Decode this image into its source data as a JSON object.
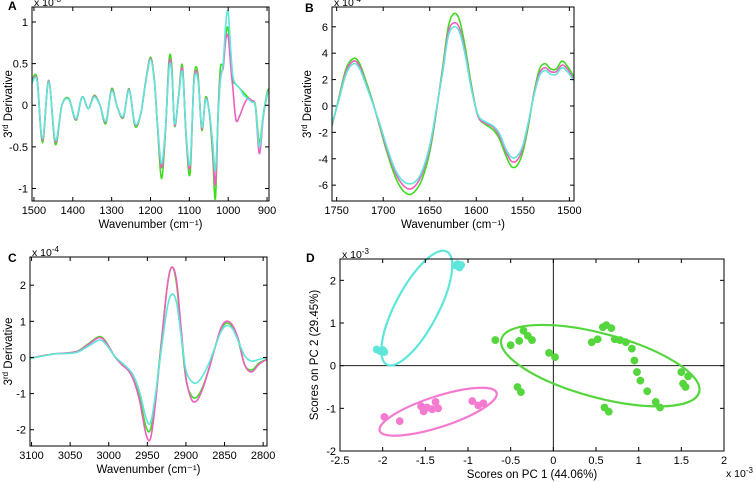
{
  "colors": {
    "green": "#3ddc1f",
    "pink": "#ee5fc0",
    "cyan": "#5ee6da",
    "light_pink": "#f47bd0",
    "mid_green": "#55d63c"
  },
  "chart_data": [
    {
      "id": "A",
      "type": "line",
      "letter": "A",
      "ylabel_prefix": "3",
      "ylabel_sup": "rd",
      "ylabel_suffix": " Derivative",
      "xlabel": "Wavenumber (cm⁻¹)",
      "exponent_label": "x 10",
      "exponent_power": "-3",
      "xlim": [
        1505,
        895
      ],
      "ylim": [
        -1.15,
        1.18
      ],
      "xticks": [
        1500,
        1400,
        1300,
        1200,
        1100,
        1000,
        900
      ],
      "yticks": [
        -1,
        -0.5,
        0,
        0.5,
        1
      ],
      "ytick_labels": [
        "-1",
        "-0.5",
        "0",
        "0.5",
        "1"
      ],
      "x": [
        1505,
        1492,
        1478,
        1462,
        1445,
        1428,
        1410,
        1392,
        1376,
        1360,
        1345,
        1330,
        1315,
        1300,
        1285,
        1270,
        1255,
        1240,
        1225,
        1212,
        1200,
        1190,
        1182,
        1172,
        1162,
        1152,
        1145,
        1138,
        1128,
        1118,
        1108,
        1098,
        1088,
        1078,
        1068,
        1058,
        1048,
        1040,
        1033,
        1026,
        1020,
        1013,
        1006,
        1000,
        994,
        988,
        980,
        970,
        960,
        950,
        940,
        930,
        920,
        910,
        900,
        895
      ],
      "series": [
        {
          "name": "green",
          "color": "#3ddc1f",
          "values": [
            0.3,
            0.32,
            -0.45,
            0.3,
            -0.47,
            0.0,
            0.08,
            -0.18,
            0.1,
            -0.04,
            0.12,
            0.0,
            -0.22,
            0.2,
            -0.03,
            -0.15,
            0.2,
            -0.25,
            -0.1,
            0.3,
            0.58,
            0.3,
            -0.25,
            -0.88,
            -0.35,
            0.55,
            0.45,
            -0.25,
            0.1,
            0.48,
            -0.4,
            -0.82,
            0.32,
            0.38,
            -0.3,
            0.1,
            -0.12,
            -0.6,
            -1.12,
            -0.1,
            0.45,
            0.5,
            0.85,
            0.92,
            0.55,
            0.3,
            0.25,
            0.2,
            0.15,
            0.1,
            0.05,
            0.0,
            -0.45,
            -0.12,
            0.15,
            0.2
          ]
        },
        {
          "name": "pink",
          "color": "#ee5fc0",
          "values": [
            0.28,
            0.3,
            -0.42,
            0.29,
            -0.44,
            0.0,
            0.07,
            -0.17,
            0.1,
            -0.04,
            0.11,
            0.0,
            -0.2,
            0.18,
            -0.03,
            -0.14,
            0.19,
            -0.23,
            -0.1,
            0.29,
            0.56,
            0.29,
            -0.24,
            -0.75,
            -0.33,
            0.5,
            0.4,
            -0.24,
            0.09,
            0.44,
            -0.38,
            -0.74,
            0.29,
            0.34,
            -0.28,
            0.08,
            -0.11,
            -0.52,
            -0.95,
            -0.12,
            0.35,
            0.45,
            0.8,
            0.82,
            0.5,
            0.2,
            -0.18,
            -0.12,
            0.0,
            0.08,
            0.06,
            -0.02,
            -0.58,
            -0.15,
            0.12,
            0.18
          ]
        },
        {
          "name": "cyan",
          "color": "#5ee6da",
          "values": [
            0.27,
            0.29,
            -0.4,
            0.28,
            -0.42,
            0.0,
            0.07,
            -0.16,
            0.1,
            -0.04,
            0.1,
            0.0,
            -0.19,
            0.17,
            -0.03,
            -0.13,
            0.18,
            -0.22,
            -0.1,
            0.28,
            0.55,
            0.28,
            -0.22,
            -0.7,
            -0.3,
            0.45,
            0.38,
            -0.22,
            0.08,
            0.4,
            -0.35,
            -0.7,
            0.27,
            0.31,
            -0.26,
            0.07,
            -0.1,
            -0.45,
            -0.78,
            -0.15,
            0.3,
            0.5,
            1.0,
            1.12,
            0.7,
            0.35,
            0.25,
            0.2,
            0.12,
            0.08,
            0.04,
            -0.02,
            -0.5,
            -0.13,
            0.12,
            0.17
          ]
        }
      ]
    },
    {
      "id": "B",
      "type": "line",
      "letter": "B",
      "ylabel_prefix": "3",
      "ylabel_sup": "rd",
      "ylabel_suffix": " Derivative",
      "xlabel": "Wavenumber (cm⁻¹)",
      "exponent_label": "x 10",
      "exponent_power": "-4",
      "xlim": [
        1755,
        1495
      ],
      "ylim": [
        -7.2,
        7.5
      ],
      "xticks": [
        1750,
        1700,
        1650,
        1600,
        1550,
        1500
      ],
      "yticks": [
        -6,
        -4,
        -2,
        0,
        2,
        4,
        6
      ],
      "ytick_labels": [
        "-6",
        "-4",
        "-2",
        "0",
        "2",
        "4",
        "6"
      ],
      "x": [
        1755,
        1748,
        1740,
        1732,
        1726,
        1720,
        1712,
        1704,
        1696,
        1688,
        1680,
        1672,
        1665,
        1658,
        1650,
        1643,
        1636,
        1630,
        1624,
        1618,
        1612,
        1605,
        1598,
        1590,
        1582,
        1575,
        1568,
        1562,
        1556,
        1550,
        1544,
        1538,
        1532,
        1526,
        1520,
        1514,
        1508,
        1502,
        1495
      ],
      "series": [
        {
          "name": "green",
          "color": "#3ddc1f",
          "values": [
            -1.5,
            0.5,
            2.8,
            3.6,
            3.3,
            2.2,
            0.5,
            -1.5,
            -3.5,
            -5.2,
            -6.3,
            -6.7,
            -6.4,
            -5.5,
            -3.5,
            -0.5,
            3.0,
            6.0,
            7.0,
            6.5,
            4.5,
            1.5,
            -0.8,
            -1.4,
            -1.8,
            -2.5,
            -3.8,
            -4.6,
            -4.5,
            -3.5,
            -1.5,
            1.0,
            2.8,
            3.2,
            2.8,
            2.8,
            3.4,
            3.0,
            2.2
          ]
        },
        {
          "name": "pink",
          "color": "#ee5fc0",
          "values": [
            -1.4,
            0.4,
            2.6,
            3.4,
            3.1,
            2.0,
            0.4,
            -1.4,
            -3.3,
            -4.9,
            -5.9,
            -6.3,
            -6.0,
            -5.1,
            -3.2,
            -0.4,
            2.8,
            5.6,
            6.3,
            5.9,
            4.1,
            1.3,
            -0.8,
            -1.3,
            -1.6,
            -2.3,
            -3.5,
            -4.2,
            -4.1,
            -3.2,
            -1.3,
            0.9,
            2.5,
            2.9,
            2.6,
            2.6,
            3.1,
            2.8,
            2.0
          ]
        },
        {
          "name": "cyan",
          "color": "#5ee6da",
          "values": [
            -1.3,
            0.35,
            2.4,
            3.2,
            2.9,
            1.9,
            0.35,
            -1.3,
            -3.1,
            -4.7,
            -5.6,
            -5.9,
            -5.7,
            -4.9,
            -3.0,
            -0.3,
            2.6,
            5.3,
            6.0,
            5.6,
            3.9,
            1.2,
            -0.7,
            -1.2,
            -1.5,
            -2.1,
            -3.3,
            -3.9,
            -3.8,
            -3.0,
            -1.2,
            0.8,
            2.3,
            2.7,
            2.4,
            2.4,
            2.9,
            2.6,
            1.9
          ]
        }
      ]
    },
    {
      "id": "C",
      "type": "line",
      "letter": "C",
      "ylabel_prefix": "3",
      "ylabel_sup": "rd",
      "ylabel_suffix": " Derivative",
      "xlabel": "Wavenumber (cm⁻¹)",
      "exponent_label": "x 10",
      "exponent_power": "-4",
      "xlim": [
        3102,
        2795
      ],
      "ylim": [
        -2.45,
        2.78
      ],
      "xticks": [
        3100,
        3050,
        3000,
        2950,
        2900,
        2850,
        2800
      ],
      "yticks": [
        -2,
        -1,
        0,
        1,
        2
      ],
      "ytick_labels": [
        "-2",
        "-1",
        "0",
        "1",
        "2"
      ],
      "x": [
        3102,
        3085,
        3070,
        3055,
        3040,
        3025,
        3012,
        3003,
        2993,
        2983,
        2975,
        2968,
        2960,
        2952,
        2946,
        2940,
        2932,
        2924,
        2918,
        2912,
        2906,
        2900,
        2893,
        2886,
        2878,
        2870,
        2862,
        2855,
        2848,
        2840,
        2832,
        2824,
        2815,
        2805,
        2795
      ],
      "series": [
        {
          "name": "green",
          "color": "#3ddc1f",
          "values": [
            -0.03,
            0.05,
            0.1,
            0.12,
            0.18,
            0.4,
            0.58,
            0.42,
            0.05,
            -0.2,
            -0.35,
            -0.6,
            -1.1,
            -1.9,
            -2.0,
            -1.2,
            0.4,
            2.0,
            2.5,
            2.0,
            0.6,
            -0.6,
            -1.05,
            -1.1,
            -0.8,
            -0.3,
            0.3,
            0.75,
            0.95,
            0.85,
            0.45,
            -0.2,
            -0.35,
            -0.15,
            -0.05
          ]
        },
        {
          "name": "pink",
          "color": "#ee5fc0",
          "values": [
            -0.02,
            0.05,
            0.1,
            0.12,
            0.17,
            0.38,
            0.55,
            0.4,
            0.05,
            -0.2,
            -0.35,
            -0.62,
            -1.2,
            -2.1,
            -2.25,
            -1.35,
            0.35,
            2.0,
            2.5,
            2.1,
            0.75,
            -0.55,
            -1.15,
            -1.2,
            -0.85,
            -0.3,
            0.3,
            0.8,
            1.0,
            0.9,
            0.5,
            -0.2,
            -0.4,
            -0.18,
            -0.05
          ]
        },
        {
          "name": "cyan",
          "color": "#5ee6da",
          "values": [
            -0.02,
            0.04,
            0.1,
            0.11,
            0.15,
            0.33,
            0.48,
            0.35,
            0.05,
            -0.15,
            -0.3,
            -0.5,
            -0.95,
            -1.65,
            -1.82,
            -1.1,
            0.2,
            1.4,
            1.75,
            1.5,
            0.55,
            -0.35,
            -0.65,
            -0.7,
            -0.5,
            -0.15,
            0.3,
            0.7,
            0.88,
            0.8,
            0.45,
            0.05,
            -0.1,
            -0.05,
            0.0
          ]
        }
      ]
    },
    {
      "id": "D",
      "type": "scatter",
      "letter": "D",
      "xlabel": "Scores on PC 1 (44.06%)",
      "ylabel": "Scores on PC 2 (29.45%)",
      "exponent_label": "x 10",
      "exponent_power": "-3",
      "x_exponent_label": "x 10",
      "x_exponent_power": "-3",
      "xlim": [
        -2.5,
        2.0
      ],
      "ylim": [
        -2.0,
        2.5
      ],
      "xticks": [
        -2.5,
        -2,
        -1.5,
        -1,
        -0.5,
        0,
        0.5,
        1,
        1.5,
        2
      ],
      "xtick_labels": [
        "-2.5",
        "-2",
        "-1.5",
        "-1",
        "-0.5",
        "0",
        "0.5",
        "1",
        "1.5",
        "2"
      ],
      "yticks": [
        -2,
        -1,
        0,
        1,
        2
      ],
      "ytick_labels": [
        "-2",
        "-1",
        "0",
        "1",
        "2"
      ],
      "series": [
        {
          "name": "cyan",
          "color": "#5ee6da",
          "points": [
            [
              -2.07,
              0.38
            ],
            [
              -2.03,
              0.34
            ],
            [
              -2.0,
              0.37
            ],
            [
              -1.98,
              0.32
            ],
            [
              -1.15,
              2.35
            ],
            [
              -1.12,
              2.38
            ],
            [
              -1.1,
              2.3
            ],
            [
              -1.08,
              2.36
            ]
          ],
          "ellipse": {
            "cx": -1.6,
            "cy": 1.35,
            "rx": 0.75,
            "ry": 0.5,
            "angle_deg": 62
          }
        },
        {
          "name": "pink",
          "color": "#f47bd0",
          "points": [
            [
              -1.98,
              -1.2
            ],
            [
              -1.8,
              -1.3
            ],
            [
              -1.55,
              -0.95
            ],
            [
              -1.52,
              -1.07
            ],
            [
              -1.48,
              -0.98
            ],
            [
              -1.42,
              -1.02
            ],
            [
              -1.38,
              -0.85
            ],
            [
              -1.35,
              -1.0
            ],
            [
              -0.95,
              -0.83
            ],
            [
              -0.88,
              -0.93
            ],
            [
              -0.82,
              -0.88
            ]
          ],
          "ellipse": {
            "cx": -1.35,
            "cy": -1.08,
            "rx": 0.72,
            "ry": 0.36,
            "angle_deg": 18
          }
        },
        {
          "name": "green",
          "color": "#55d63c",
          "points": [
            [
              -0.68,
              0.6
            ],
            [
              -0.5,
              0.48
            ],
            [
              -0.4,
              0.58
            ],
            [
              -0.35,
              0.82
            ],
            [
              -0.3,
              0.7
            ],
            [
              -0.25,
              0.6
            ],
            [
              -0.42,
              -0.5
            ],
            [
              -0.38,
              -0.62
            ],
            [
              -0.05,
              0.3
            ],
            [
              0.02,
              0.2
            ],
            [
              0.45,
              0.55
            ],
            [
              0.52,
              0.62
            ],
            [
              0.58,
              0.9
            ],
            [
              0.62,
              0.95
            ],
            [
              0.68,
              0.88
            ],
            [
              0.72,
              0.62
            ],
            [
              0.78,
              0.6
            ],
            [
              0.85,
              0.55
            ],
            [
              0.92,
              0.4
            ],
            [
              0.95,
              0.12
            ],
            [
              0.98,
              -0.15
            ],
            [
              1.02,
              -0.35
            ],
            [
              1.1,
              -0.6
            ],
            [
              1.2,
              -0.85
            ],
            [
              1.25,
              -0.98
            ],
            [
              1.5,
              -0.15
            ],
            [
              1.52,
              -0.42
            ],
            [
              1.55,
              -0.5
            ],
            [
              1.58,
              -0.25
            ],
            [
              0.6,
              -0.98
            ],
            [
              0.65,
              -1.08
            ]
          ],
          "ellipse": {
            "cx": 0.55,
            "cy": 0.0,
            "rx": 1.2,
            "ry": 0.75,
            "angle_deg": -15
          }
        }
      ]
    }
  ]
}
